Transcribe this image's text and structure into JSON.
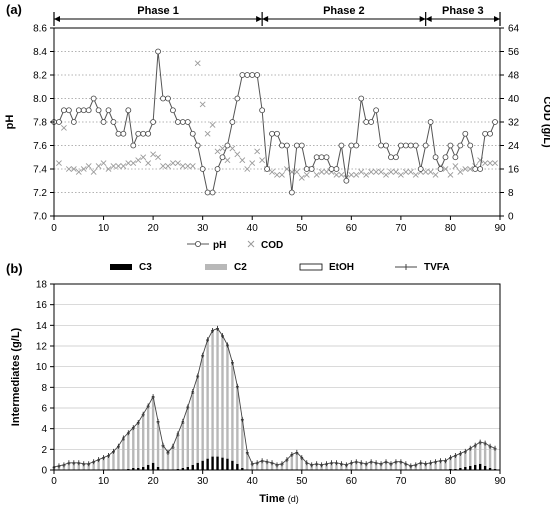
{
  "chart_data": [
    {
      "panel": "(a)",
      "type": "line",
      "xlim": [
        0,
        90
      ],
      "x_ticks": [
        0,
        10,
        20,
        30,
        40,
        50,
        60,
        70,
        80,
        90
      ],
      "ylabel": "pH",
      "ylim": [
        7.0,
        8.6
      ],
      "y_ticks": [
        "7.0",
        "7.2",
        "7.4",
        "7.6",
        "7.8",
        "8.0",
        "8.2",
        "8.4",
        "8.6"
      ],
      "y2label": "COD (g/L)",
      "y2lim": [
        0,
        64
      ],
      "y2_ticks": [
        "0",
        "8",
        "16",
        "24",
        "32",
        "40",
        "48",
        "56",
        "64"
      ],
      "grid": "horizontal dotted",
      "phases": [
        {
          "label": "Phase 1",
          "start": 0,
          "end": 42
        },
        {
          "label": "Phase 2",
          "start": 42,
          "end": 75
        },
        {
          "label": "Phase 3",
          "start": 75,
          "end": 90
        }
      ],
      "series": [
        {
          "name": "pH",
          "marker": "open-circle",
          "x": [
            0,
            1,
            2,
            3,
            4,
            5,
            6,
            7,
            8,
            9,
            10,
            11,
            12,
            13,
            14,
            15,
            16,
            17,
            18,
            19,
            20,
            21,
            22,
            23,
            24,
            25,
            26,
            27,
            28,
            29,
            30,
            31,
            32,
            33,
            34,
            35,
            36,
            37,
            38,
            39,
            40,
            41,
            42,
            43,
            44,
            45,
            46,
            47,
            48,
            49,
            50,
            51,
            52,
            53,
            54,
            55,
            56,
            57,
            58,
            59,
            60,
            61,
            62,
            63,
            64,
            65,
            66,
            67,
            68,
            69,
            70,
            71,
            72,
            73,
            74,
            75,
            76,
            77,
            78,
            79,
            80,
            81,
            82,
            83,
            84,
            85,
            86,
            87,
            88,
            89
          ],
          "values": [
            7.8,
            7.8,
            7.9,
            7.9,
            7.8,
            7.9,
            7.9,
            7.9,
            8.0,
            7.9,
            7.8,
            7.9,
            7.8,
            7.7,
            7.7,
            7.9,
            7.6,
            7.7,
            7.7,
            7.7,
            7.8,
            8.4,
            8.0,
            8.0,
            7.9,
            7.8,
            7.8,
            7.8,
            7.7,
            7.6,
            7.4,
            7.2,
            7.2,
            7.4,
            7.5,
            7.6,
            7.8,
            8.0,
            8.2,
            8.2,
            8.2,
            8.2,
            7.9,
            7.4,
            7.7,
            7.7,
            7.6,
            7.6,
            7.2,
            7.6,
            7.6,
            7.4,
            7.4,
            7.5,
            7.5,
            7.5,
            7.4,
            7.4,
            7.6,
            7.3,
            7.6,
            7.6,
            8.0,
            7.8,
            7.8,
            7.9,
            7.6,
            7.6,
            7.5,
            7.5,
            7.6,
            7.6,
            7.6,
            7.6,
            7.4,
            7.6,
            7.8,
            7.5,
            7.4,
            7.5,
            7.6,
            7.5,
            7.6,
            7.7,
            7.6,
            7.4,
            7.4,
            7.7,
            7.7,
            7.8
          ]
        },
        {
          "name": "COD",
          "marker": "x",
          "axis": "right",
          "x": [
            1,
            2,
            3,
            4,
            5,
            6,
            7,
            8,
            9,
            10,
            11,
            12,
            13,
            14,
            15,
            16,
            17,
            18,
            19,
            20,
            21,
            22,
            23,
            24,
            25,
            26,
            27,
            28,
            29,
            30,
            31,
            32,
            33,
            34,
            35,
            36,
            37,
            38,
            39,
            40,
            41,
            42,
            43,
            44,
            45,
            46,
            47,
            48,
            49,
            50,
            51,
            52,
            53,
            54,
            55,
            56,
            57,
            58,
            59,
            60,
            61,
            62,
            63,
            64,
            65,
            66,
            67,
            68,
            69,
            70,
            71,
            72,
            73,
            74,
            75,
            76,
            77,
            78,
            79,
            80,
            81,
            82,
            83,
            84,
            85,
            86,
            87,
            88,
            89
          ],
          "values": [
            18,
            30,
            16,
            16,
            15,
            16,
            17,
            15,
            17,
            18,
            16,
            17,
            17,
            17,
            18,
            18,
            19,
            20,
            18,
            21,
            20,
            17,
            17,
            18,
            18,
            17,
            17,
            17,
            52,
            38,
            28,
            31,
            22,
            23,
            19,
            23,
            21,
            19,
            16,
            18,
            22,
            19,
            16,
            15,
            14,
            14,
            16,
            15,
            15,
            13,
            14,
            16,
            14,
            15,
            15,
            15,
            14,
            14,
            13,
            14,
            14,
            15,
            14,
            15,
            15,
            15,
            14,
            15,
            15,
            14,
            15,
            15,
            14,
            15,
            15,
            15,
            14,
            17,
            16,
            14,
            17,
            15,
            16,
            16,
            17,
            19,
            18,
            18,
            18
          ]
        }
      ]
    },
    {
      "panel": "(b)",
      "type": "bar",
      "stacking": "stacked",
      "xlabel": "Time",
      "xlabel_unit": "(d)",
      "xlim": [
        0,
        90
      ],
      "x_ticks": [
        0,
        10,
        20,
        30,
        40,
        50,
        60,
        70,
        80,
        90
      ],
      "ylabel": "Intermediates (g/L)",
      "ylim": [
        0,
        18
      ],
      "y_ticks": [
        0,
        2,
        4,
        6,
        8,
        10,
        12,
        14,
        16,
        18
      ],
      "grid": "horizontal solid",
      "x": [
        0,
        1,
        2,
        3,
        4,
        5,
        6,
        7,
        8,
        9,
        10,
        11,
        12,
        13,
        14,
        15,
        16,
        17,
        18,
        19,
        20,
        21,
        22,
        23,
        24,
        25,
        26,
        27,
        28,
        29,
        30,
        31,
        32,
        33,
        34,
        35,
        36,
        37,
        38,
        39,
        40,
        41,
        42,
        43,
        44,
        45,
        46,
        47,
        48,
        49,
        50,
        51,
        52,
        53,
        54,
        55,
        56,
        57,
        58,
        59,
        60,
        61,
        62,
        63,
        64,
        65,
        66,
        67,
        68,
        69,
        70,
        71,
        72,
        73,
        74,
        75,
        76,
        77,
        78,
        79,
        80,
        81,
        82,
        83,
        84,
        85,
        86,
        87,
        88,
        89
      ],
      "series": [
        {
          "name": "C3",
          "color": "#000000",
          "values": [
            0,
            0,
            0,
            0,
            0,
            0,
            0,
            0,
            0,
            0,
            0,
            0,
            0,
            0,
            0,
            0.1,
            0.2,
            0.2,
            0.3,
            0.5,
            0.7,
            0.3,
            0,
            0,
            0,
            0.1,
            0.2,
            0.3,
            0.5,
            0.7,
            0.9,
            1.1,
            1.3,
            1.3,
            1.2,
            1.1,
            0.9,
            0.6,
            0.2,
            0,
            0,
            0,
            0,
            0,
            0,
            0,
            0,
            0,
            0,
            0,
            0,
            0,
            0,
            0,
            0,
            0,
            0,
            0,
            0,
            0,
            0,
            0,
            0,
            0,
            0,
            0,
            0,
            0,
            0,
            0,
            0,
            0,
            0,
            0,
            0,
            0,
            0,
            0,
            0,
            0,
            0.1,
            0.1,
            0.2,
            0.3,
            0.4,
            0.5,
            0.6,
            0.4,
            0.2,
            0.1
          ]
        },
        {
          "name": "C2",
          "color": "#b8b8b8",
          "values": [
            0.2,
            0.3,
            0.4,
            0.6,
            0.6,
            0.6,
            0.5,
            0.5,
            0.7,
            0.9,
            1.1,
            1.3,
            1.7,
            2.2,
            2.9,
            3.4,
            3.8,
            4.3,
            5.0,
            5.6,
            6.3,
            4.3,
            2.3,
            1.6,
            2.1,
            3.2,
            4.3,
            5.7,
            6.9,
            8.3,
            10.1,
            11.4,
            12.1,
            12.3,
            11.7,
            10.9,
            9.4,
            7.4,
            4.6,
            1.6,
            0.5,
            0.6,
            0.8,
            0.7,
            0.6,
            0.4,
            0.5,
            0.9,
            1.4,
            1.6,
            1.1,
            0.6,
            0.4,
            0.5,
            0.4,
            0.5,
            0.6,
            0.6,
            0.5,
            0.4,
            0.6,
            0.7,
            0.6,
            0.5,
            0.7,
            0.6,
            0.5,
            0.7,
            0.5,
            0.7,
            0.7,
            0.5,
            0.3,
            0.4,
            0.6,
            0.5,
            0.6,
            0.7,
            0.8,
            0.8,
            1.0,
            1.2,
            1.3,
            1.4,
            1.6,
            1.8,
            2.0,
            2.1,
            2.0,
            1.9
          ]
        },
        {
          "name": "EtOH",
          "color": "#ffffff",
          "values": [
            0.05,
            0.05,
            0.1,
            0.1,
            0.1,
            0.1,
            0.1,
            0.1,
            0.1,
            0.1,
            0.1,
            0.1,
            0.1,
            0.1,
            0.1,
            0.1,
            0.1,
            0.1,
            0.1,
            0.1,
            0.1,
            0.1,
            0.1,
            0.1,
            0.1,
            0.1,
            0.1,
            0.1,
            0.1,
            0.1,
            0.1,
            0.1,
            0.1,
            0.1,
            0.1,
            0.1,
            0.1,
            0.1,
            0.1,
            0.1,
            0.1,
            0.1,
            0.1,
            0.1,
            0.1,
            0.1,
            0.1,
            0.1,
            0.1,
            0.1,
            0.1,
            0.1,
            0.1,
            0.1,
            0.1,
            0.1,
            0.1,
            0.1,
            0.1,
            0.1,
            0.1,
            0.1,
            0.1,
            0.1,
            0.1,
            0.1,
            0.1,
            0.1,
            0.1,
            0.1,
            0.1,
            0.1,
            0.1,
            0.1,
            0.1,
            0.1,
            0.1,
            0.1,
            0.1,
            0.1,
            0.1,
            0.1,
            0.1,
            0.1,
            0.1,
            0.1,
            0.1,
            0.1,
            0.1,
            0.1
          ]
        }
      ],
      "line_series": {
        "name": "TVFA",
        "marker": "plus",
        "values": [
          0.3,
          0.4,
          0.5,
          0.7,
          0.7,
          0.7,
          0.6,
          0.6,
          0.8,
          1.0,
          1.2,
          1.4,
          1.8,
          2.3,
          3.1,
          3.6,
          4.1,
          4.6,
          5.4,
          6.2,
          7.1,
          4.7,
          2.4,
          1.7,
          2.3,
          3.5,
          4.7,
          6.1,
          7.6,
          9.1,
          11.1,
          12.6,
          13.5,
          13.7,
          13.0,
          12.1,
          10.4,
          8.1,
          4.9,
          1.7,
          0.6,
          0.7,
          0.9,
          0.8,
          0.7,
          0.5,
          0.6,
          1.0,
          1.5,
          1.7,
          1.2,
          0.7,
          0.5,
          0.6,
          0.5,
          0.6,
          0.7,
          0.7,
          0.6,
          0.5,
          0.7,
          0.8,
          0.7,
          0.6,
          0.8,
          0.7,
          0.6,
          0.8,
          0.6,
          0.8,
          0.8,
          0.6,
          0.4,
          0.5,
          0.7,
          0.6,
          0.7,
          0.8,
          0.9,
          0.9,
          1.2,
          1.4,
          1.6,
          1.8,
          2.1,
          2.4,
          2.7,
          2.6,
          2.3,
          2.1
        ]
      }
    }
  ]
}
